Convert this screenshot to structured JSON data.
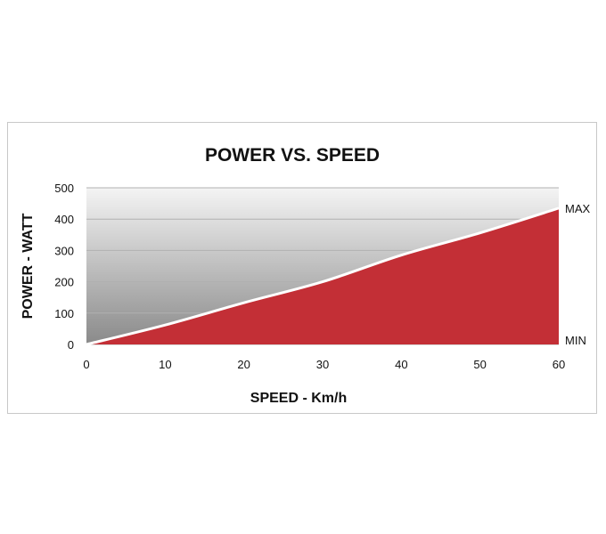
{
  "chart_data": {
    "type": "area",
    "title": "POWER VS. SPEED",
    "xlabel": "SPEED - Km/h",
    "ylabel": "POWER - WATT",
    "x": [
      0,
      10,
      20,
      30,
      40,
      50,
      60
    ],
    "y": [
      0,
      62,
      133,
      200,
      285,
      356,
      435
    ],
    "xlim": [
      0,
      60
    ],
    "ylim": [
      0,
      500
    ],
    "xticks": [
      "0",
      "10",
      "20",
      "30",
      "40",
      "50",
      "60"
    ],
    "yticks": [
      "0",
      "100",
      "200",
      "300",
      "400",
      "500"
    ],
    "grid": true,
    "annotations": {
      "max": "MAX",
      "min": "MIN"
    },
    "colors": {
      "fill": "#c32f36",
      "line": "#ffffff",
      "background_top": "#f4f4f4",
      "background_bottom": "#8a8a8a"
    }
  }
}
